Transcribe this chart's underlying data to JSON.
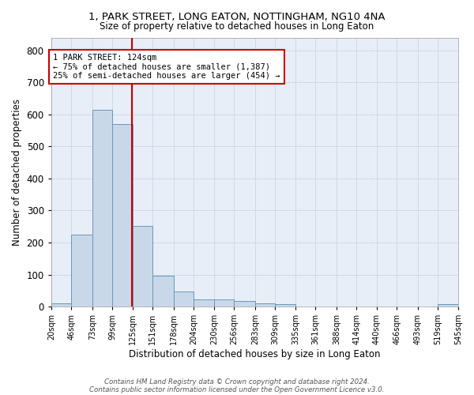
{
  "title1": "1, PARK STREET, LONG EATON, NOTTINGHAM, NG10 4NA",
  "title2": "Size of property relative to detached houses in Long Eaton",
  "xlabel": "Distribution of detached houses by size in Long Eaton",
  "ylabel": "Number of detached properties",
  "bins": [
    20,
    46,
    73,
    99,
    125,
    151,
    178,
    204,
    230,
    256,
    283,
    309,
    335,
    361,
    388,
    414,
    440,
    466,
    493,
    519,
    545
  ],
  "counts": [
    10,
    225,
    615,
    570,
    252,
    97,
    47,
    22,
    22,
    18,
    10,
    7,
    0,
    0,
    0,
    0,
    0,
    0,
    0,
    7
  ],
  "bar_color": "#c8d8e8",
  "bar_edge_color": "#6699bb",
  "vline_x": 124,
  "vline_color": "#cc0000",
  "annotation_line1": "1 PARK STREET: 124sqm",
  "annotation_line2": "← 75% of detached houses are smaller (1,387)",
  "annotation_line3": "25% of semi-detached houses are larger (454) →",
  "annotation_box_color": "white",
  "annotation_box_edge": "#cc0000",
  "annotation_fontsize": 7.5,
  "grid_color": "#d0d8e8",
  "background_color": "#e8eef8",
  "footer_line1": "Contains HM Land Registry data © Crown copyright and database right 2024.",
  "footer_line2": "Contains public sector information licensed under the Open Government Licence v3.0.",
  "ylim": [
    0,
    840
  ],
  "tick_labels": [
    "20sqm",
    "46sqm",
    "73sqm",
    "99sqm",
    "125sqm",
    "151sqm",
    "178sqm",
    "204sqm",
    "230sqm",
    "256sqm",
    "283sqm",
    "309sqm",
    "335sqm",
    "361sqm",
    "388sqm",
    "414sqm",
    "440sqm",
    "466sqm",
    "493sqm",
    "519sqm",
    "545sqm"
  ]
}
